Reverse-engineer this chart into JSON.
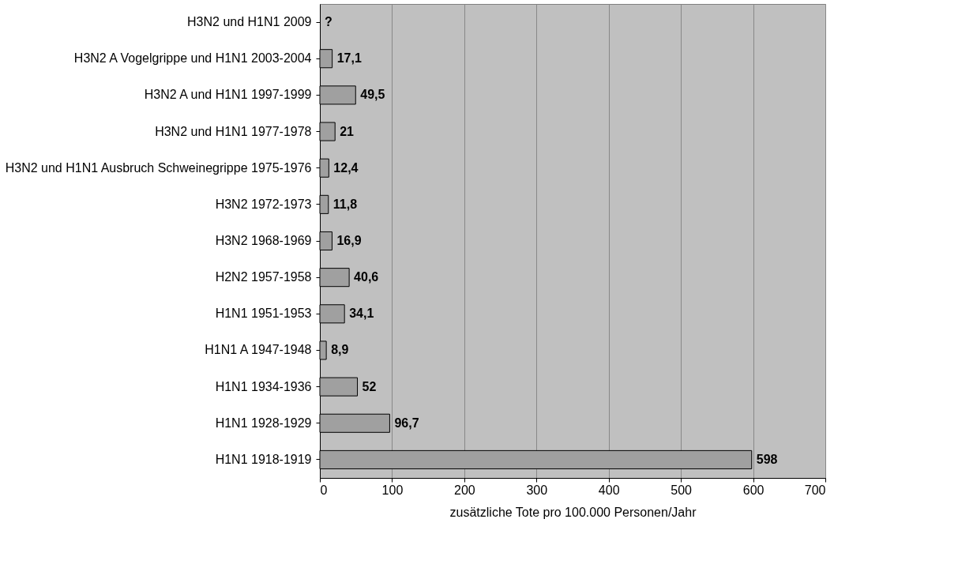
{
  "chart_data": {
    "type": "bar",
    "orientation": "horizontal",
    "xlabel": "zusätzliche Tote pro 100.000 Personen/Jahr",
    "categories": [
      "H3N2 und H1N1 2009",
      "H3N2 A Vogelgrippe und H1N1 2003-2004",
      "H3N2 A und H1N1 1997-1999 ",
      "H3N2 und H1N1 1977-1978",
      "H3N2 und H1N1 Ausbruch Schweinegrippe 1975-1976",
      "H3N2 1972-1973",
      "H3N2  1968-1969",
      "H2N2 1957-1958",
      "H1N1 1951-1953",
      "H1N1 A 1947-1948",
      "H1N1 1934-1936",
      "H1N1 1928-1929",
      "H1N1 1918-1919"
    ],
    "values": [
      null,
      17.1,
      49.5,
      21,
      12.4,
      11.8,
      16.9,
      40.6,
      34.1,
      8.9,
      52,
      96.7,
      598
    ],
    "value_labels": [
      "?",
      "17,1",
      "49,5",
      "21",
      "12,4",
      "11,8",
      "16,9",
      "40,6",
      "34,1",
      "8,9",
      "52",
      "96,7",
      "598"
    ],
    "color": "#a0a0a0",
    "xlim": [
      0,
      700
    ],
    "xticks": [
      0,
      100,
      200,
      300,
      400,
      500,
      600,
      700
    ],
    "grid": "x"
  }
}
